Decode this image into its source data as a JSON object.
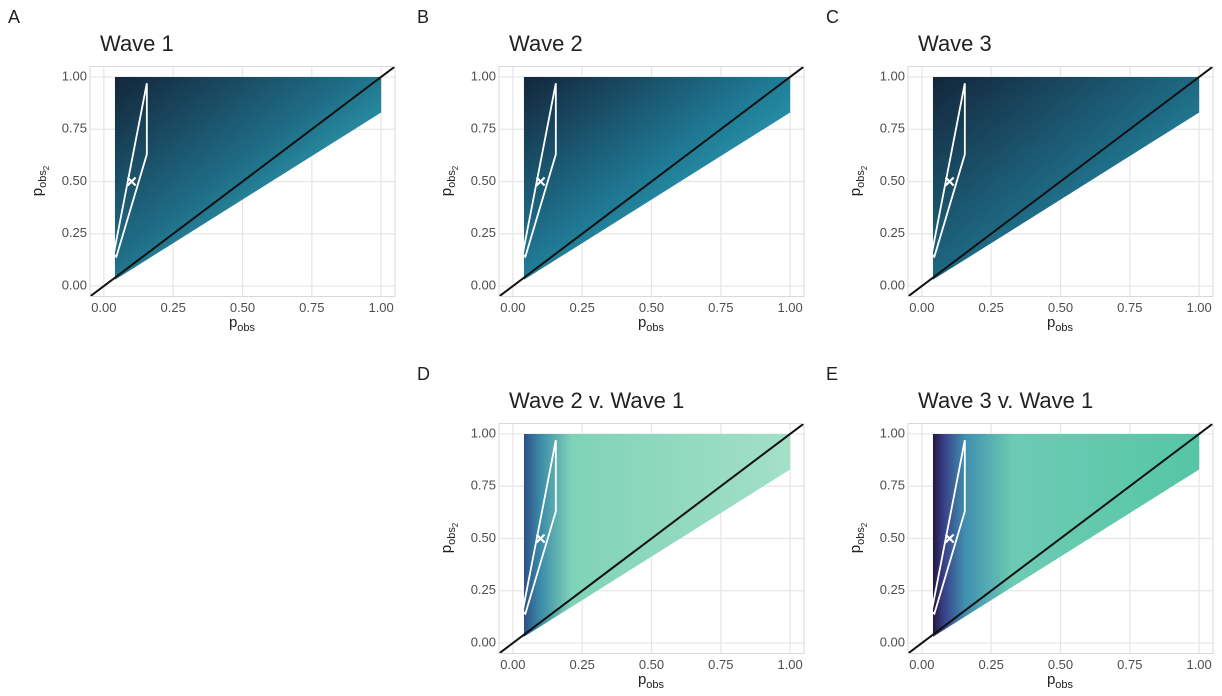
{
  "chart_data": [
    {
      "type": "heatmap",
      "panel": "A",
      "title": "Wave 1",
      "xlabel": "p",
      "xlabel_subscript": "obs",
      "ylabel": "p",
      "ylabel_subscript": "obs",
      "ylabel_subsubscript": "2",
      "xlim": [
        -0.05,
        1.05
      ],
      "ylim": [
        -0.05,
        1.05
      ],
      "xticks": [
        {
          "value": 0,
          "label": "0.00"
        },
        {
          "value": 0.25,
          "label": "0.25"
        },
        {
          "value": 0.5,
          "label": "0.50"
        },
        {
          "value": 0.75,
          "label": "0.75"
        },
        {
          "value": 1,
          "label": "1.00"
        }
      ],
      "yticks": [
        {
          "value": 0,
          "label": "0.00"
        },
        {
          "value": 0.25,
          "label": "0.25"
        },
        {
          "value": 0.5,
          "label": "0.50"
        },
        {
          "value": 0.75,
          "label": "0.75"
        },
        {
          "value": 1,
          "label": "1.00"
        }
      ],
      "grid": true,
      "region": {
        "x": [
          0.04,
          1.0,
          1.0,
          0.04
        ],
        "y": [
          1.0,
          1.0,
          0.83,
          0.03
        ]
      },
      "fill_gradient": {
        "direction": "diagonal",
        "stops": [
          {
            "offset": 0,
            "color": "#13263b"
          },
          {
            "offset": 0.45,
            "color": "#1f6d86"
          },
          {
            "offset": 1,
            "color": "#3de0e6"
          }
        ]
      },
      "outline": {
        "x": [
          0.035,
          0.155,
          0.155,
          0.045
        ],
        "y": [
          0.15,
          0.97,
          0.63,
          0.14
        ]
      },
      "point": {
        "x": [
          0.1
        ],
        "y": [
          0.5
        ]
      },
      "reference_line": {
        "x": [
          -0.05,
          1.05
        ],
        "y": [
          -0.05,
          1.05
        ]
      }
    },
    {
      "type": "heatmap",
      "panel": "B",
      "title": "Wave 2",
      "xlabel": "p",
      "xlabel_subscript": "obs",
      "ylabel": "p",
      "ylabel_subscript": "obs",
      "ylabel_subsubscript": "2",
      "xlim": [
        -0.05,
        1.05
      ],
      "ylim": [
        -0.05,
        1.05
      ],
      "xticks": [
        {
          "value": 0,
          "label": "0.00"
        },
        {
          "value": 0.25,
          "label": "0.25"
        },
        {
          "value": 0.5,
          "label": "0.50"
        },
        {
          "value": 0.75,
          "label": "0.75"
        },
        {
          "value": 1,
          "label": "1.00"
        }
      ],
      "yticks": [
        {
          "value": 0,
          "label": "0.00"
        },
        {
          "value": 0.25,
          "label": "0.25"
        },
        {
          "value": 0.5,
          "label": "0.50"
        },
        {
          "value": 0.75,
          "label": "0.75"
        },
        {
          "value": 1,
          "label": "1.00"
        }
      ],
      "grid": true,
      "region": {
        "x": [
          0.04,
          1.0,
          1.0,
          0.04
        ],
        "y": [
          1.0,
          1.0,
          0.83,
          0.03
        ]
      },
      "fill_gradient": {
        "direction": "diagonal",
        "stops": [
          {
            "offset": 0,
            "color": "#13263b"
          },
          {
            "offset": 0.45,
            "color": "#1f7590"
          },
          {
            "offset": 1,
            "color": "#35d2de"
          }
        ]
      },
      "outline": {
        "x": [
          0.035,
          0.155,
          0.155,
          0.045
        ],
        "y": [
          0.15,
          0.97,
          0.63,
          0.14
        ]
      },
      "point": {
        "x": [
          0.1
        ],
        "y": [
          0.5
        ]
      },
      "reference_line": {
        "x": [
          -0.05,
          1.05
        ],
        "y": [
          -0.05,
          1.05
        ]
      }
    },
    {
      "type": "heatmap",
      "panel": "C",
      "title": "Wave 3",
      "xlabel": "p",
      "xlabel_subscript": "obs",
      "ylabel": "p",
      "ylabel_subscript": "obs",
      "ylabel_subsubscript": "2",
      "xlim": [
        -0.05,
        1.05
      ],
      "ylim": [
        -0.05,
        1.05
      ],
      "xticks": [
        {
          "value": 0,
          "label": "0.00"
        },
        {
          "value": 0.25,
          "label": "0.25"
        },
        {
          "value": 0.5,
          "label": "0.50"
        },
        {
          "value": 0.75,
          "label": "0.75"
        },
        {
          "value": 1,
          "label": "1.00"
        }
      ],
      "yticks": [
        {
          "value": 0,
          "label": "0.00"
        },
        {
          "value": 0.25,
          "label": "0.25"
        },
        {
          "value": 0.5,
          "label": "0.50"
        },
        {
          "value": 0.75,
          "label": "0.75"
        },
        {
          "value": 1,
          "label": "1.00"
        }
      ],
      "grid": true,
      "region": {
        "x": [
          0.04,
          1.0,
          1.0,
          0.04
        ],
        "y": [
          1.0,
          1.0,
          0.83,
          0.03
        ]
      },
      "fill_gradient": {
        "direction": "diagonal",
        "stops": [
          {
            "offset": 0,
            "color": "#13263b"
          },
          {
            "offset": 0.5,
            "color": "#1e6882"
          },
          {
            "offset": 1,
            "color": "#2cb6c6"
          }
        ]
      },
      "outline": {
        "x": [
          0.035,
          0.155,
          0.155,
          0.045
        ],
        "y": [
          0.15,
          0.97,
          0.63,
          0.14
        ]
      },
      "point": {
        "x": [
          0.1
        ],
        "y": [
          0.5
        ]
      },
      "reference_line": {
        "x": [
          -0.05,
          1.05
        ],
        "y": [
          -0.05,
          1.05
        ]
      }
    },
    {
      "type": "heatmap",
      "panel": "D",
      "title": "Wave 2 v. Wave 1",
      "xlabel": "p",
      "xlabel_subscript": "obs",
      "ylabel": "p",
      "ylabel_subscript": "obs",
      "ylabel_subsubscript": "2",
      "xlim": [
        -0.05,
        1.05
      ],
      "ylim": [
        -0.05,
        1.05
      ],
      "xticks": [
        {
          "value": 0,
          "label": "0.00"
        },
        {
          "value": 0.25,
          "label": "0.25"
        },
        {
          "value": 0.5,
          "label": "0.50"
        },
        {
          "value": 0.75,
          "label": "0.75"
        },
        {
          "value": 1,
          "label": "1.00"
        }
      ],
      "yticks": [
        {
          "value": 0,
          "label": "0.00"
        },
        {
          "value": 0.25,
          "label": "0.25"
        },
        {
          "value": 0.5,
          "label": "0.50"
        },
        {
          "value": 0.75,
          "label": "0.75"
        },
        {
          "value": 1,
          "label": "1.00"
        }
      ],
      "grid": true,
      "region": {
        "x": [
          0.04,
          1.0,
          1.0,
          0.04
        ],
        "y": [
          1.0,
          1.0,
          0.83,
          0.03
        ]
      },
      "fill_gradient": {
        "direction": "horizontal",
        "stops": [
          {
            "offset": 0,
            "color": "#2f4f86"
          },
          {
            "offset": 0.06,
            "color": "#3a8aa8"
          },
          {
            "offset": 0.18,
            "color": "#7fd3b7"
          },
          {
            "offset": 1,
            "color": "#a3e0c8"
          }
        ]
      },
      "outline": {
        "x": [
          0.035,
          0.155,
          0.155,
          0.045
        ],
        "y": [
          0.15,
          0.97,
          0.63,
          0.14
        ]
      },
      "point": {
        "x": [
          0.1
        ],
        "y": [
          0.5
        ]
      },
      "reference_line": {
        "x": [
          -0.05,
          1.05
        ],
        "y": [
          -0.05,
          1.05
        ]
      }
    },
    {
      "type": "heatmap",
      "panel": "E",
      "title": "Wave 3 v. Wave 1",
      "xlabel": "p",
      "xlabel_subscript": "obs",
      "ylabel": "p",
      "ylabel_subscript": "obs",
      "ylabel_subsubscript": "2",
      "xlim": [
        -0.05,
        1.05
      ],
      "ylim": [
        -0.05,
        1.05
      ],
      "xticks": [
        {
          "value": 0,
          "label": "0.00"
        },
        {
          "value": 0.25,
          "label": "0.25"
        },
        {
          "value": 0.5,
          "label": "0.50"
        },
        {
          "value": 0.75,
          "label": "0.75"
        },
        {
          "value": 1,
          "label": "1.00"
        }
      ],
      "yticks": [
        {
          "value": 0,
          "label": "0.00"
        },
        {
          "value": 0.25,
          "label": "0.25"
        },
        {
          "value": 0.5,
          "label": "0.50"
        },
        {
          "value": 0.75,
          "label": "0.75"
        },
        {
          "value": 1,
          "label": "1.00"
        }
      ],
      "grid": true,
      "region": {
        "x": [
          0.04,
          1.0,
          1.0,
          0.04
        ],
        "y": [
          1.0,
          1.0,
          0.83,
          0.03
        ]
      },
      "fill_gradient": {
        "direction": "horizontal",
        "stops": [
          {
            "offset": 0,
            "color": "#22183d"
          },
          {
            "offset": 0.04,
            "color": "#3a3f88"
          },
          {
            "offset": 0.12,
            "color": "#3f8fb0"
          },
          {
            "offset": 0.3,
            "color": "#6dcbb3"
          },
          {
            "offset": 1,
            "color": "#55c6a6"
          }
        ]
      },
      "outline": {
        "x": [
          0.035,
          0.155,
          0.155,
          0.045
        ],
        "y": [
          0.15,
          0.97,
          0.63,
          0.14
        ]
      },
      "point": {
        "x": [
          0.1
        ],
        "y": [
          0.5
        ]
      },
      "reference_line": {
        "x": [
          -0.05,
          1.05
        ],
        "y": [
          -0.05,
          1.05
        ]
      }
    }
  ]
}
